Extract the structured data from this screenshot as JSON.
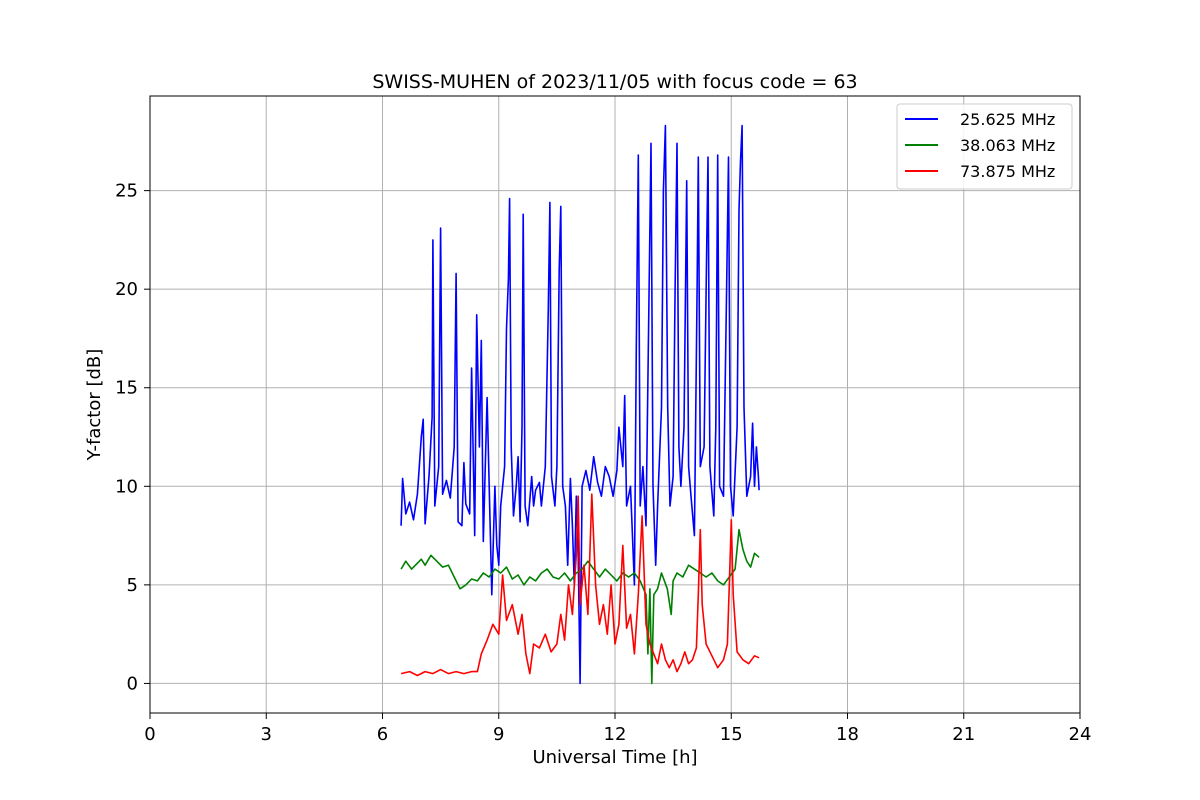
{
  "chart_data": {
    "type": "line",
    "title": "SWISS-MUHEN of 2023/11/05 with focus code = 63",
    "xlabel": "Universal Time [h]",
    "ylabel": "Y-factor [dB]",
    "xlim": [
      0,
      24
    ],
    "ylim": [
      -1.5,
      29.8
    ],
    "xticks": [
      0,
      3,
      6,
      9,
      12,
      15,
      18,
      21,
      24
    ],
    "yticks": [
      0,
      5,
      10,
      15,
      20,
      25
    ],
    "grid": true,
    "legend_position": "top-right",
    "series": [
      {
        "name": "25.625 MHz",
        "color": "#0000ff",
        "points": [
          [
            6.48,
            8.0
          ],
          [
            6.52,
            10.4
          ],
          [
            6.6,
            8.6
          ],
          [
            6.7,
            9.2
          ],
          [
            6.8,
            8.3
          ],
          [
            6.9,
            9.6
          ],
          [
            7.0,
            12.5
          ],
          [
            7.05,
            13.4
          ],
          [
            7.1,
            8.1
          ],
          [
            7.2,
            10.5
          ],
          [
            7.28,
            13.5
          ],
          [
            7.3,
            22.5
          ],
          [
            7.35,
            9.0
          ],
          [
            7.45,
            11.0
          ],
          [
            7.5,
            23.1
          ],
          [
            7.55,
            9.6
          ],
          [
            7.65,
            10.3
          ],
          [
            7.75,
            9.4
          ],
          [
            7.85,
            12.0
          ],
          [
            7.9,
            20.8
          ],
          [
            7.95,
            8.2
          ],
          [
            8.05,
            8.0
          ],
          [
            8.1,
            11.2
          ],
          [
            8.15,
            9.1
          ],
          [
            8.25,
            8.6
          ],
          [
            8.3,
            16.0
          ],
          [
            8.38,
            7.5
          ],
          [
            8.43,
            18.7
          ],
          [
            8.5,
            12.0
          ],
          [
            8.55,
            17.4
          ],
          [
            8.6,
            7.2
          ],
          [
            8.7,
            14.5
          ],
          [
            8.75,
            10.2
          ],
          [
            8.82,
            4.5
          ],
          [
            8.9,
            10.0
          ],
          [
            8.95,
            7.0
          ],
          [
            9.0,
            6.0
          ],
          [
            9.05,
            9.0
          ],
          [
            9.15,
            11.0
          ],
          [
            9.2,
            18.0
          ],
          [
            9.25,
            20.5
          ],
          [
            9.28,
            24.6
          ],
          [
            9.32,
            12.0
          ],
          [
            9.38,
            8.5
          ],
          [
            9.45,
            10.0
          ],
          [
            9.5,
            11.5
          ],
          [
            9.55,
            8.2
          ],
          [
            9.6,
            13.0
          ],
          [
            9.63,
            23.8
          ],
          [
            9.68,
            9.0
          ],
          [
            9.75,
            8.0
          ],
          [
            9.85,
            10.5
          ],
          [
            9.9,
            9.0
          ],
          [
            9.95,
            9.8
          ],
          [
            10.05,
            10.2
          ],
          [
            10.1,
            9.0
          ],
          [
            10.2,
            11.0
          ],
          [
            10.28,
            19.0
          ],
          [
            10.32,
            24.4
          ],
          [
            10.36,
            10.5
          ],
          [
            10.45,
            9.0
          ],
          [
            10.5,
            11.0
          ],
          [
            10.56,
            21.0
          ],
          [
            10.6,
            24.2
          ],
          [
            10.65,
            10.0
          ],
          [
            10.72,
            9.0
          ],
          [
            10.78,
            6.0
          ],
          [
            10.85,
            10.4
          ],
          [
            10.9,
            8.0
          ],
          [
            10.95,
            5.0
          ],
          [
            11.0,
            9.5
          ],
          [
            11.05,
            6.5
          ],
          [
            11.1,
            0.0
          ],
          [
            11.15,
            10.0
          ],
          [
            11.25,
            10.8
          ],
          [
            11.35,
            9.8
          ],
          [
            11.45,
            11.5
          ],
          [
            11.55,
            10.2
          ],
          [
            11.65,
            9.5
          ],
          [
            11.75,
            11.0
          ],
          [
            11.85,
            10.5
          ],
          [
            11.95,
            9.5
          ],
          [
            12.05,
            10.8
          ],
          [
            12.1,
            13.0
          ],
          [
            12.2,
            11.0
          ],
          [
            12.25,
            14.6
          ],
          [
            12.3,
            9.0
          ],
          [
            12.4,
            10.0
          ],
          [
            12.5,
            5.0
          ],
          [
            12.55,
            17.0
          ],
          [
            12.6,
            26.8
          ],
          [
            12.65,
            9.0
          ],
          [
            12.72,
            11.0
          ],
          [
            12.8,
            8.0
          ],
          [
            12.88,
            20.0
          ],
          [
            12.93,
            27.4
          ],
          [
            12.98,
            10.0
          ],
          [
            13.05,
            6.0
          ],
          [
            13.1,
            9.0
          ],
          [
            13.2,
            14.0
          ],
          [
            13.25,
            25.0
          ],
          [
            13.3,
            28.3
          ],
          [
            13.36,
            14.0
          ],
          [
            13.42,
            9.0
          ],
          [
            13.5,
            10.5
          ],
          [
            13.55,
            20.0
          ],
          [
            13.6,
            27.4
          ],
          [
            13.65,
            12.0
          ],
          [
            13.7,
            10.0
          ],
          [
            13.78,
            13.0
          ],
          [
            13.85,
            25.5
          ],
          [
            13.9,
            11.0
          ],
          [
            13.96,
            9.5
          ],
          [
            14.05,
            7.5
          ],
          [
            14.12,
            20.0
          ],
          [
            14.15,
            26.7
          ],
          [
            14.2,
            11.0
          ],
          [
            14.3,
            12.0
          ],
          [
            14.36,
            21.0
          ],
          [
            14.4,
            26.7
          ],
          [
            14.45,
            11.0
          ],
          [
            14.55,
            8.5
          ],
          [
            14.6,
            13.0
          ],
          [
            14.65,
            26.8
          ],
          [
            14.7,
            10.0
          ],
          [
            14.8,
            9.5
          ],
          [
            14.88,
            20.0
          ],
          [
            14.93,
            26.7
          ],
          [
            14.98,
            10.0
          ],
          [
            15.05,
            8.5
          ],
          [
            15.15,
            13.0
          ],
          [
            15.2,
            24.0
          ],
          [
            15.24,
            26.5
          ],
          [
            15.28,
            28.3
          ],
          [
            15.33,
            14.0
          ],
          [
            15.4,
            9.5
          ],
          [
            15.5,
            10.5
          ],
          [
            15.55,
            13.2
          ],
          [
            15.6,
            10.0
          ],
          [
            15.65,
            12.0
          ],
          [
            15.7,
            10.5
          ],
          [
            15.72,
            9.8
          ]
        ]
      },
      {
        "name": "38.063 MHz",
        "color": "#008000",
        "points": [
          [
            6.48,
            5.8
          ],
          [
            6.6,
            6.2
          ],
          [
            6.75,
            5.8
          ],
          [
            6.9,
            6.1
          ],
          [
            7.0,
            6.3
          ],
          [
            7.1,
            6.0
          ],
          [
            7.25,
            6.5
          ],
          [
            7.4,
            6.2
          ],
          [
            7.55,
            5.9
          ],
          [
            7.7,
            6.0
          ],
          [
            7.85,
            5.4
          ],
          [
            8.0,
            4.8
          ],
          [
            8.15,
            5.0
          ],
          [
            8.3,
            5.3
          ],
          [
            8.45,
            5.2
          ],
          [
            8.6,
            5.6
          ],
          [
            8.75,
            5.4
          ],
          [
            8.9,
            5.8
          ],
          [
            9.05,
            5.6
          ],
          [
            9.2,
            5.9
          ],
          [
            9.35,
            5.3
          ],
          [
            9.5,
            5.5
          ],
          [
            9.65,
            5.0
          ],
          [
            9.8,
            5.4
          ],
          [
            9.95,
            5.2
          ],
          [
            10.1,
            5.6
          ],
          [
            10.25,
            5.8
          ],
          [
            10.4,
            5.4
          ],
          [
            10.55,
            5.3
          ],
          [
            10.7,
            5.6
          ],
          [
            10.85,
            5.2
          ],
          [
            11.0,
            5.6
          ],
          [
            11.15,
            5.8
          ],
          [
            11.3,
            6.2
          ],
          [
            11.45,
            5.8
          ],
          [
            11.6,
            5.4
          ],
          [
            11.75,
            5.8
          ],
          [
            11.9,
            5.5
          ],
          [
            12.05,
            5.2
          ],
          [
            12.2,
            5.6
          ],
          [
            12.35,
            5.4
          ],
          [
            12.5,
            5.6
          ],
          [
            12.65,
            5.2
          ],
          [
            12.8,
            4.5
          ],
          [
            12.85,
            1.5
          ],
          [
            12.9,
            4.8
          ],
          [
            12.95,
            0.0
          ],
          [
            13.0,
            4.5
          ],
          [
            13.1,
            4.8
          ],
          [
            13.2,
            5.6
          ],
          [
            13.35,
            4.8
          ],
          [
            13.45,
            3.5
          ],
          [
            13.5,
            5.2
          ],
          [
            13.6,
            5.6
          ],
          [
            13.75,
            5.4
          ],
          [
            13.9,
            6.0
          ],
          [
            14.05,
            5.8
          ],
          [
            14.2,
            5.6
          ],
          [
            14.35,
            5.4
          ],
          [
            14.5,
            5.6
          ],
          [
            14.65,
            5.2
          ],
          [
            14.8,
            5.0
          ],
          [
            14.95,
            5.4
          ],
          [
            15.1,
            5.8
          ],
          [
            15.2,
            7.8
          ],
          [
            15.3,
            6.8
          ],
          [
            15.4,
            6.2
          ],
          [
            15.5,
            5.9
          ],
          [
            15.6,
            6.6
          ],
          [
            15.72,
            6.4
          ]
        ]
      },
      {
        "name": "73.875 MHz",
        "color": "#ff0000",
        "points": [
          [
            6.48,
            0.5
          ],
          [
            6.7,
            0.6
          ],
          [
            6.9,
            0.4
          ],
          [
            7.1,
            0.6
          ],
          [
            7.3,
            0.5
          ],
          [
            7.5,
            0.7
          ],
          [
            7.7,
            0.5
          ],
          [
            7.9,
            0.6
          ],
          [
            8.1,
            0.5
          ],
          [
            8.3,
            0.6
          ],
          [
            8.45,
            0.6
          ],
          [
            8.55,
            1.5
          ],
          [
            8.7,
            2.2
          ],
          [
            8.85,
            3.0
          ],
          [
            9.0,
            2.5
          ],
          [
            9.1,
            5.5
          ],
          [
            9.2,
            3.2
          ],
          [
            9.35,
            4.0
          ],
          [
            9.5,
            2.5
          ],
          [
            9.6,
            3.5
          ],
          [
            9.7,
            1.5
          ],
          [
            9.8,
            0.5
          ],
          [
            9.9,
            2.0
          ],
          [
            10.05,
            1.8
          ],
          [
            10.2,
            2.5
          ],
          [
            10.35,
            1.6
          ],
          [
            10.5,
            2.0
          ],
          [
            10.6,
            3.5
          ],
          [
            10.7,
            2.2
          ],
          [
            10.8,
            5.0
          ],
          [
            10.9,
            3.5
          ],
          [
            11.0,
            6.5
          ],
          [
            11.05,
            9.5
          ],
          [
            11.1,
            4.0
          ],
          [
            11.2,
            6.0
          ],
          [
            11.3,
            3.5
          ],
          [
            11.4,
            9.6
          ],
          [
            11.5,
            5.0
          ],
          [
            11.6,
            3.0
          ],
          [
            11.7,
            4.0
          ],
          [
            11.8,
            2.5
          ],
          [
            11.9,
            5.0
          ],
          [
            12.0,
            2.0
          ],
          [
            12.1,
            3.0
          ],
          [
            12.2,
            7.0
          ],
          [
            12.3,
            2.8
          ],
          [
            12.4,
            3.5
          ],
          [
            12.5,
            1.5
          ],
          [
            12.6,
            4.5
          ],
          [
            12.7,
            8.5
          ],
          [
            12.8,
            3.0
          ],
          [
            12.9,
            2.0
          ],
          [
            13.0,
            1.5
          ],
          [
            13.1,
            1.0
          ],
          [
            13.2,
            2.0
          ],
          [
            13.3,
            1.2
          ],
          [
            13.4,
            0.8
          ],
          [
            13.5,
            1.2
          ],
          [
            13.6,
            0.6
          ],
          [
            13.7,
            1.0
          ],
          [
            13.8,
            1.6
          ],
          [
            13.9,
            1.0
          ],
          [
            14.0,
            1.2
          ],
          [
            14.1,
            1.8
          ],
          [
            14.15,
            4.5
          ],
          [
            14.2,
            7.8
          ],
          [
            14.25,
            4.0
          ],
          [
            14.35,
            2.0
          ],
          [
            14.5,
            1.4
          ],
          [
            14.65,
            0.8
          ],
          [
            14.8,
            1.2
          ],
          [
            14.9,
            2.0
          ],
          [
            14.95,
            5.0
          ],
          [
            15.0,
            8.3
          ],
          [
            15.05,
            4.5
          ],
          [
            15.15,
            1.6
          ],
          [
            15.3,
            1.2
          ],
          [
            15.45,
            1.0
          ],
          [
            15.6,
            1.4
          ],
          [
            15.72,
            1.3
          ]
        ]
      }
    ]
  }
}
